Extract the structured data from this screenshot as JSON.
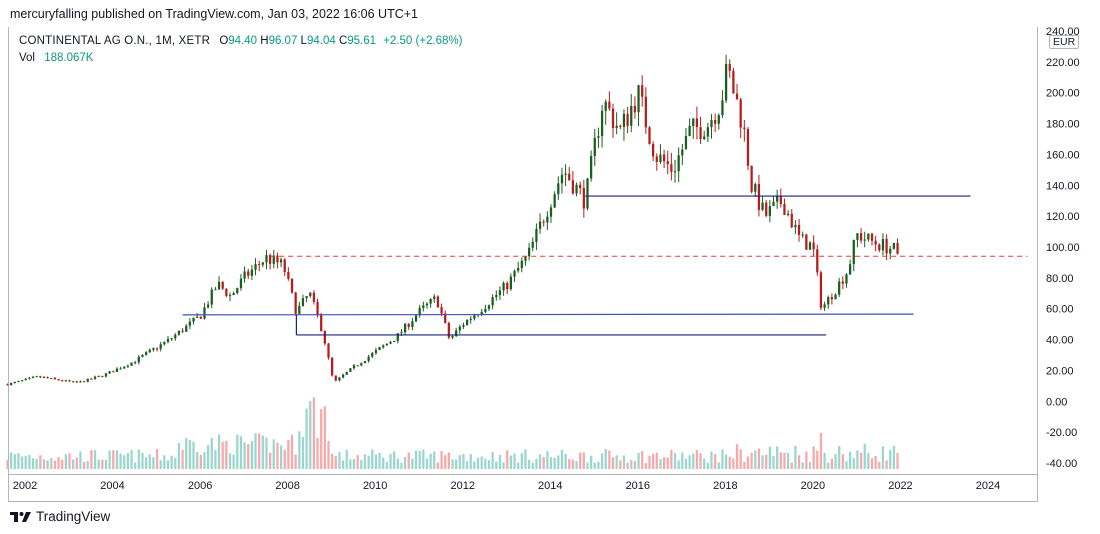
{
  "header": {
    "published": "mercuryfalling published on TradingView.com, Jan 03, 2022 16:06 UTC+1"
  },
  "legend": {
    "symbol": "CONTINENTAL AG O.N., 1M, XETR",
    "open_label": "O",
    "open": "94.40",
    "high_label": "H",
    "high": "96.07",
    "low_label": "L",
    "low": "94.04",
    "close_label": "C",
    "close": "95.61",
    "change": "+2.50 (+2.68%)",
    "vol_label": "Vol",
    "vol_value": "188.067K"
  },
  "currency": "EUR",
  "footer": {
    "brand": "TradingView"
  },
  "colors": {
    "up": "#089981",
    "down": "#f23645",
    "candle_up": "#1b5e20",
    "candle_down": "#b71c1c",
    "vol_up": "#9bd6ce",
    "vol_down": "#f7a9a9",
    "line": "#1a237e",
    "dashed": "#e53935"
  },
  "chart_data": {
    "type": "candlestick",
    "title": "CONTINENTAL AG O.N., 1M, XETR",
    "ylim": [
      -40,
      240
    ],
    "yticks": [
      "240.00",
      "220.00",
      "200.00",
      "180.00",
      "160.00",
      "140.00",
      "120.00",
      "100.00",
      "80.00",
      "60.00",
      "40.00",
      "20.00",
      "0.00",
      "-20.00",
      "-40.00"
    ],
    "ytick_values": [
      240,
      220,
      200,
      180,
      160,
      140,
      120,
      100,
      80,
      60,
      40,
      20,
      0,
      -20,
      -40
    ],
    "xticks": [
      "2002",
      "2004",
      "2006",
      "2008",
      "2010",
      "2012",
      "2014",
      "2016",
      "2018",
      "2020",
      "2022",
      "2024"
    ],
    "xtick_values": [
      2002,
      2004,
      2006,
      2008,
      2010,
      2012,
      2014,
      2016,
      2018,
      2020,
      2022,
      2024
    ],
    "xlim": [
      2001.6,
      2025.0
    ],
    "price_anchors": [
      [
        2001.6,
        11
      ],
      [
        2002.3,
        16
      ],
      [
        2002.7,
        14
      ],
      [
        2003.2,
        12
      ],
      [
        2003.8,
        17
      ],
      [
        2004.5,
        26
      ],
      [
        2005.3,
        40
      ],
      [
        2006.0,
        55
      ],
      [
        2006.4,
        76
      ],
      [
        2006.7,
        68
      ],
      [
        2007.0,
        80
      ],
      [
        2007.5,
        93
      ],
      [
        2007.9,
        88
      ],
      [
        2008.2,
        58
      ],
      [
        2008.5,
        70
      ],
      [
        2008.8,
        45
      ],
      [
        2009.05,
        12
      ],
      [
        2009.5,
        22
      ],
      [
        2010.0,
        32
      ],
      [
        2010.5,
        42
      ],
      [
        2011.0,
        58
      ],
      [
        2011.4,
        67
      ],
      [
        2011.7,
        40
      ],
      [
        2012.0,
        50
      ],
      [
        2012.5,
        62
      ],
      [
        2013.0,
        75
      ],
      [
        2013.5,
        95
      ],
      [
        2014.0,
        130
      ],
      [
        2014.3,
        150
      ],
      [
        2014.8,
        130
      ],
      [
        2015.2,
        195
      ],
      [
        2015.6,
        175
      ],
      [
        2016.0,
        200
      ],
      [
        2016.4,
        160
      ],
      [
        2016.8,
        150
      ],
      [
        2017.2,
        175
      ],
      [
        2017.6,
        180
      ],
      [
        2017.9,
        195
      ],
      [
        2018.05,
        215
      ],
      [
        2018.4,
        180
      ],
      [
        2018.6,
        140
      ],
      [
        2018.9,
        120
      ],
      [
        2019.3,
        130
      ],
      [
        2019.7,
        105
      ],
      [
        2020.0,
        100
      ],
      [
        2020.2,
        60
      ],
      [
        2020.5,
        72
      ],
      [
        2020.8,
        85
      ],
      [
        2021.0,
        108
      ],
      [
        2021.4,
        103
      ],
      [
        2021.8,
        99
      ],
      [
        2022.0,
        95.61
      ]
    ],
    "volume_baseline": -40,
    "horizontal_lines": [
      {
        "name": "support-line-134",
        "from": 2014.8,
        "to": 2023.6,
        "value": 133
      },
      {
        "name": "support-line-43",
        "from": 2008.2,
        "to": 2020.3,
        "value": 43
      },
      {
        "name": "support-line-56",
        "from": 2005.6,
        "to": 2022.3,
        "value": 56,
        "slope_end": 56.5
      }
    ],
    "dashed_line": {
      "from": 2007.6,
      "to": 2024.9,
      "value": 94
    }
  }
}
